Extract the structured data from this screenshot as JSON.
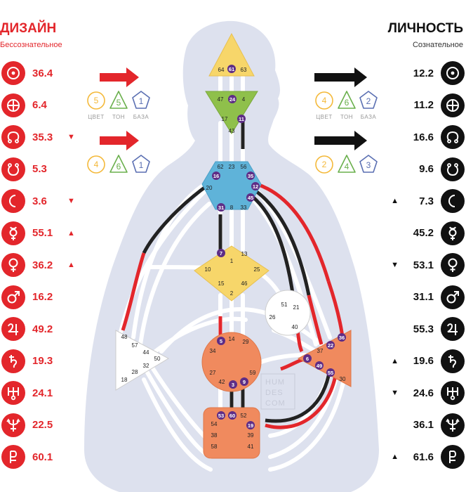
{
  "design": {
    "title": "ДИЗАЙН",
    "subtitle": "Бессознательное",
    "color": "#e3262b",
    "planets": [
      {
        "icon": "sun-icon",
        "value": "36.4",
        "mark": ""
      },
      {
        "icon": "earth-icon",
        "value": "6.4",
        "mark": ""
      },
      {
        "icon": "north-node-icon",
        "value": "35.3",
        "mark": "▼"
      },
      {
        "icon": "south-node-icon",
        "value": "5.3",
        "mark": ""
      },
      {
        "icon": "moon-icon",
        "value": "3.6",
        "mark": "▼"
      },
      {
        "icon": "mercury-icon",
        "value": "55.1",
        "mark": "▲"
      },
      {
        "icon": "venus-icon",
        "value": "36.2",
        "mark": "▲"
      },
      {
        "icon": "mars-icon",
        "value": "16.2",
        "mark": ""
      },
      {
        "icon": "jupiter-icon",
        "value": "49.2",
        "mark": ""
      },
      {
        "icon": "saturn-icon",
        "value": "19.3",
        "mark": ""
      },
      {
        "icon": "uranus-icon",
        "value": "24.1",
        "mark": ""
      },
      {
        "icon": "neptune-icon",
        "value": "22.5",
        "mark": ""
      },
      {
        "icon": "pluto-icon",
        "value": "60.1",
        "mark": ""
      }
    ],
    "variables": [
      {
        "color": "5",
        "tone": "5",
        "base": "1"
      },
      {
        "color": "4",
        "tone": "6",
        "base": "1"
      }
    ]
  },
  "personality": {
    "title": "ЛИЧНОСТЬ",
    "subtitle": "Сознательное",
    "color": "#111111",
    "planets": [
      {
        "icon": "sun-icon",
        "value": "12.2",
        "mark": ""
      },
      {
        "icon": "earth-icon",
        "value": "11.2",
        "mark": ""
      },
      {
        "icon": "north-node-icon",
        "value": "16.6",
        "mark": ""
      },
      {
        "icon": "south-node-icon",
        "value": "9.6",
        "mark": ""
      },
      {
        "icon": "moon-icon",
        "value": "7.3",
        "mark": "▲"
      },
      {
        "icon": "mercury-icon",
        "value": "45.2",
        "mark": ""
      },
      {
        "icon": "venus-icon",
        "value": "53.1",
        "mark": "▼"
      },
      {
        "icon": "mars-icon",
        "value": "31.1",
        "mark": ""
      },
      {
        "icon": "jupiter-icon",
        "value": "55.3",
        "mark": ""
      },
      {
        "icon": "saturn-icon",
        "value": "19.6",
        "mark": "▲"
      },
      {
        "icon": "uranus-icon",
        "value": "24.6",
        "mark": "▼"
      },
      {
        "icon": "neptune-icon",
        "value": "36.1",
        "mark": ""
      },
      {
        "icon": "pluto-icon",
        "value": "61.6",
        "mark": "▲"
      }
    ],
    "variables": [
      {
        "color": "4",
        "tone": "6",
        "base": "2"
      },
      {
        "color": "2",
        "tone": "4",
        "base": "3"
      }
    ]
  },
  "labels": {
    "color": "ЦВЕТ",
    "tone": "ТОН",
    "base": "БАЗА"
  },
  "watermark": [
    "HUM",
    "DES",
    "COM"
  ],
  "colors": {
    "head": "#f7d66a",
    "ajna": "#8fc04b",
    "throat": "#5fb3d9",
    "g": "#f7d66a",
    "heart": "#ffffff",
    "spleen": "#ffffff",
    "sacral": "#f08a5e",
    "solar": "#f08a5e",
    "root": "#f08a5e",
    "active": "#5e2d86",
    "body": "#dde1ee"
  },
  "centers": {
    "head": {
      "gates": [
        "64",
        "61",
        "63"
      ],
      "active": [
        "61"
      ]
    },
    "ajna": {
      "gates": [
        "47",
        "24",
        "4",
        "17",
        "11",
        "43"
      ],
      "active": [
        "24",
        "11"
      ]
    },
    "throat": {
      "gates": [
        "62",
        "23",
        "56",
        "16",
        "35",
        "12",
        "20",
        "45",
        "31",
        "8",
        "33"
      ],
      "active": [
        "16",
        "35",
        "12",
        "45",
        "31"
      ]
    },
    "g": {
      "gates": [
        "1",
        "7",
        "13",
        "10",
        "25",
        "15",
        "46",
        "2"
      ],
      "active": [
        "7"
      ]
    },
    "heart": {
      "gates": [
        "51",
        "21",
        "26",
        "40"
      ],
      "active": []
    },
    "spleen": {
      "gates": [
        "48",
        "57",
        "44",
        "50",
        "32",
        "28",
        "18"
      ],
      "active": []
    },
    "sacral": {
      "gates": [
        "14",
        "5",
        "29",
        "34",
        "27",
        "59",
        "42",
        "3",
        "9"
      ],
      "active": [
        "5",
        "3",
        "9"
      ]
    },
    "solar": {
      "gates": [
        "36",
        "22",
        "37",
        "6",
        "49",
        "55",
        "30"
      ],
      "active": [
        "36",
        "22",
        "6",
        "49",
        "55"
      ]
    },
    "root": {
      "gates": [
        "53",
        "60",
        "52",
        "54",
        "19",
        "38",
        "39",
        "58",
        "41"
      ],
      "active": [
        "53",
        "60",
        "19"
      ]
    }
  }
}
